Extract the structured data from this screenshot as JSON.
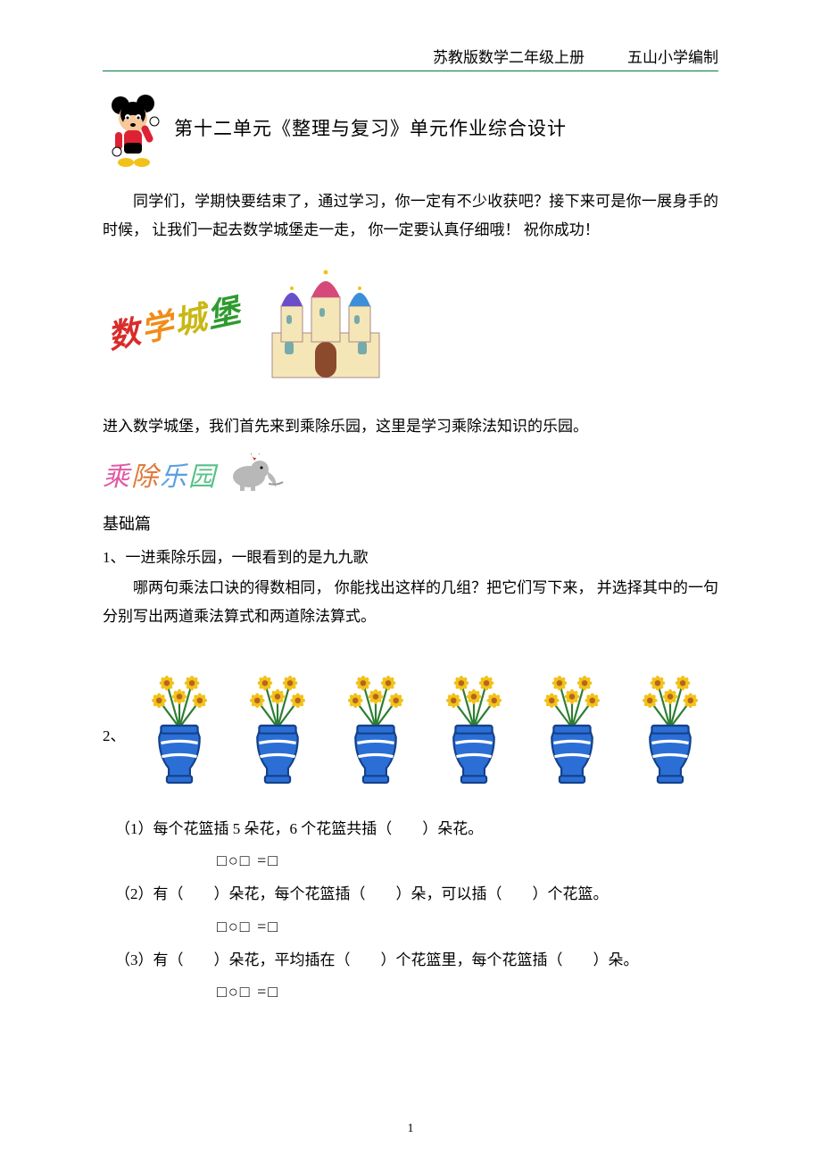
{
  "header": {
    "book": "苏教版数学二年级上册",
    "school": "五山小学编制"
  },
  "title": "第十二单元《整理与复习》单元作业综合设计",
  "intro": "同学们，学期快要结束了，通过学习，你一定有不少收获吧？接下来可是你一展身手的时候， 让我们一起去数学城堡走一走， 你一定要认真仔细哦！ 祝你成功！",
  "castle_wordart": {
    "c1": "数",
    "c2": "学",
    "c3": "城",
    "c4": "堡"
  },
  "castle_intro": "进入数学城堡，我们首先来到乘除乐园，这里是学习乘除法知识的乐园。",
  "rainbow": {
    "c1": "乘",
    "c2": "除",
    "c3": "乐",
    "c4": "园"
  },
  "section": "基础篇",
  "q1": {
    "line1": "1、一进乘除乐园，一眼看到的是九九歌",
    "line2": "哪两句乘法口诀的得数相同， 你能找出这样的几组？把它们写下来， 并选择其中的一句分别写出两道乘法算式和两道除法算式。"
  },
  "q2": {
    "label": "2、",
    "vase": {
      "count": 6,
      "flowers_per_vase": 5,
      "petal_color": "#f2c21a",
      "center_color": "#b5651d",
      "stem_color": "#2e7d32",
      "vase_fill": "#2b6fd6",
      "vase_stripe": "#ffffff"
    },
    "sub1": "（1）每个花篮插 5 朵花，6 个花篮共插（　　）朵花。",
    "sub2": "（2）有（　　）朵花，每个花篮插（　　）朵，可以插（　　）个花篮。",
    "sub3": "（3）有（　　）朵花，平均插在（　　）个花篮里，每个花篮插（　　）朵。",
    "eq": "□○□ =□"
  },
  "page_number": "1"
}
